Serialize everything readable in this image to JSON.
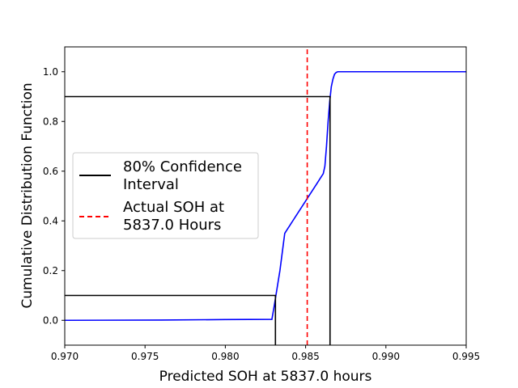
{
  "chart_data": {
    "type": "line",
    "title": "",
    "xlabel": "Predicted SOH at 5837.0 hours",
    "ylabel": "Cumulative Distribution Function",
    "xlim": [
      0.97,
      0.995
    ],
    "ylim": [
      -0.1,
      1.1
    ],
    "x_ticks": [
      0.97,
      0.975,
      0.98,
      0.985,
      0.99,
      0.995
    ],
    "x_tick_labels": [
      "0.970",
      "0.975",
      "0.980",
      "0.985",
      "0.990",
      "0.995"
    ],
    "y_ticks": [
      0.0,
      0.2,
      0.4,
      0.6,
      0.8,
      1.0
    ],
    "y_tick_labels": [
      "0.0",
      "0.2",
      "0.4",
      "0.6",
      "0.8",
      "1.0"
    ],
    "grid": false,
    "legend_placement": "center-left",
    "series": [
      {
        "name": "",
        "color": "#0000ff",
        "style": "solid",
        "x": [
          0.97,
          0.976,
          0.98,
          0.9829,
          0.98305,
          0.9831,
          0.9832,
          0.9833,
          0.9834,
          0.9835,
          0.9836,
          0.9837,
          0.9838,
          0.9839,
          0.984,
          0.9841,
          0.9842,
          0.9844,
          0.9846,
          0.9848,
          0.985,
          0.9851,
          0.9853,
          0.9855,
          0.9857,
          0.9859,
          0.9861,
          0.9862,
          0.9863,
          0.9864,
          0.9865,
          0.9866,
          0.9867,
          0.9868,
          0.9869,
          0.987,
          0.9872,
          0.9875,
          0.988,
          0.989,
          0.99,
          0.995
        ],
        "y": [
          0.0,
          0.001,
          0.003,
          0.004,
          0.06,
          0.08,
          0.12,
          0.16,
          0.2,
          0.25,
          0.3,
          0.35,
          0.36,
          0.37,
          0.38,
          0.39,
          0.4,
          0.42,
          0.44,
          0.46,
          0.48,
          0.49,
          0.51,
          0.53,
          0.55,
          0.57,
          0.59,
          0.62,
          0.7,
          0.8,
          0.88,
          0.94,
          0.97,
          0.99,
          0.997,
          1.0,
          1.0,
          1.0,
          1.0,
          1.0,
          1.0,
          1.0
        ]
      },
      {
        "name": "80% Confidence Interval",
        "color": "#000000",
        "style": "solid",
        "segments": [
          {
            "x": [
              0.97,
              0.98312,
              0.98312
            ],
            "y": [
              0.1,
              0.1,
              -0.1
            ]
          },
          {
            "x": [
              0.97,
              0.98652,
              0.98652
            ],
            "y": [
              0.9,
              0.9,
              -0.1
            ]
          }
        ]
      },
      {
        "name": "Actual SOH at 5837.0 Hours",
        "color": "#ff0000",
        "style": "dashed",
        "x": [
          0.9851,
          0.9851
        ],
        "y": [
          -0.1,
          1.1
        ]
      }
    ],
    "legend": [
      {
        "label_lines": [
          "80% Confidence",
          "Interval"
        ],
        "color": "#000000",
        "style": "solid"
      },
      {
        "label_lines": [
          "Actual SOH at",
          "5837.0 Hours"
        ],
        "color": "#ff0000",
        "style": "dashed"
      }
    ]
  }
}
